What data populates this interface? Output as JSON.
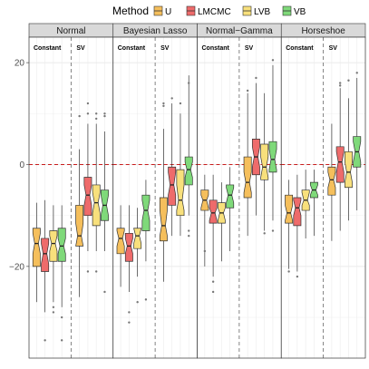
{
  "chart_data": {
    "type": "boxplot",
    "legend": {
      "title": "Method",
      "position": "top",
      "items": [
        {
          "label": "U",
          "color": "#f5bf5c"
        },
        {
          "label": "LMCMC",
          "color": "#ee6b6b"
        },
        {
          "label": "LVB",
          "color": "#f8e07c"
        },
        {
          "label": "VB",
          "color": "#7fd97a"
        }
      ]
    },
    "ylim": [
      -38,
      25
    ],
    "y_ticks": [
      -20,
      0,
      20
    ],
    "reference_line": {
      "y": 0,
      "color": "#c91d1d"
    },
    "groups": [
      "Constant",
      "SV"
    ],
    "grid": true,
    "panels": [
      {
        "title": "Normal",
        "boxes": [
          {
            "group": "Constant",
            "method": "U",
            "whisker_low": -27,
            "q1": -20,
            "median": -15.5,
            "q3": -12.5,
            "whisker_high": -7.5,
            "notch": [
              -17.5,
              -13.5
            ],
            "outliers": []
          },
          {
            "group": "Constant",
            "method": "LMCMC",
            "whisker_low": -29,
            "q1": -21,
            "median": -17.5,
            "q3": -14.5,
            "whisker_high": -7,
            "notch": [
              -19.5,
              -15.5
            ],
            "outliers": [
              -34.5
            ]
          },
          {
            "group": "Constant",
            "method": "LVB",
            "whisker_low": -27,
            "q1": -19,
            "median": -15.5,
            "q3": -13,
            "whisker_high": -8,
            "notch": [
              -17,
              -14
            ],
            "outliers": [
              -28,
              -29
            ]
          },
          {
            "group": "Constant",
            "method": "VB",
            "whisker_low": -28,
            "q1": -19,
            "median": -16,
            "q3": -12.5,
            "whisker_high": -8,
            "notch": [
              -17.5,
              -14.5
            ],
            "outliers": [
              -30,
              -34.5
            ]
          },
          {
            "group": "SV",
            "method": "U",
            "whisker_low": -26,
            "q1": -16,
            "median": -14,
            "q3": -8,
            "whisker_high": 3,
            "notch": [
              -16,
              -11.5
            ],
            "outliers": [
              9.5
            ]
          },
          {
            "group": "SV",
            "method": "LMCMC",
            "whisker_low": -17,
            "q1": -10,
            "median": -6,
            "q3": -2.5,
            "whisker_high": 8,
            "notch": [
              -8,
              -4
            ],
            "outliers": [
              -21,
              12,
              10
            ]
          },
          {
            "group": "SV",
            "method": "LVB",
            "whisker_low": -17,
            "q1": -12,
            "median": -7.5,
            "q3": -4,
            "whisker_high": 8,
            "notch": [
              -9.5,
              -5.5
            ],
            "outliers": [
              -21,
              10,
              9
            ]
          },
          {
            "group": "SV",
            "method": "VB",
            "whisker_low": -17,
            "q1": -11,
            "median": -8,
            "q3": -5,
            "whisker_high": 6.5,
            "notch": [
              -10,
              -6
            ],
            "outliers": [
              -25,
              9.5,
              10
            ]
          }
        ]
      },
      {
        "title": "Bayesian Lasso",
        "boxes": [
          {
            "group": "Constant",
            "method": "U",
            "whisker_low": -24,
            "q1": -17.5,
            "median": -14.5,
            "q3": -12.5,
            "whisker_high": -8,
            "notch": [
              -16,
              -13
            ],
            "outliers": []
          },
          {
            "group": "Constant",
            "method": "LMCMC",
            "whisker_low": -25,
            "q1": -19,
            "median": -16,
            "q3": -13.5,
            "whisker_high": -8,
            "notch": [
              -17.5,
              -14.5
            ],
            "outliers": [
              -29,
              -31
            ]
          },
          {
            "group": "Constant",
            "method": "LVB",
            "whisker_low": -22,
            "q1": -16.5,
            "median": -14,
            "q3": -12.5,
            "whisker_high": -8.5,
            "notch": [
              -15.5,
              -12.5
            ],
            "outliers": [
              -27
            ]
          },
          {
            "group": "Constant",
            "method": "VB",
            "whisker_low": -19,
            "q1": -13,
            "median": -9,
            "q3": -6,
            "whisker_high": -3,
            "notch": [
              -11,
              -7
            ],
            "outliers": [
              -26.5
            ]
          },
          {
            "group": "SV",
            "method": "U",
            "whisker_low": -23,
            "q1": -15,
            "median": -12,
            "q3": -6.5,
            "whisker_high": 7,
            "notch": [
              -14,
              -9
            ],
            "outliers": [
              11.5,
              12
            ]
          },
          {
            "group": "SV",
            "method": "LMCMC",
            "whisker_low": -14,
            "q1": -8,
            "median": -4,
            "q3": -0.5,
            "whisker_high": 12,
            "notch": [
              -6,
              -1.5
            ],
            "outliers": [
              13
            ]
          },
          {
            "group": "SV",
            "method": "LVB",
            "whisker_low": -14,
            "q1": -10,
            "median": -7,
            "q3": -1,
            "whisker_high": 10,
            "notch": [
              -9,
              -4
            ],
            "outliers": [
              12
            ]
          },
          {
            "group": "SV",
            "method": "VB",
            "whisker_low": -10,
            "q1": -4,
            "median": -1,
            "q3": 1.5,
            "whisker_high": 17.5,
            "notch": [
              -2.5,
              0.5
            ],
            "outliers": [
              -13,
              -14,
              16
            ]
          }
        ]
      },
      {
        "title": "Normal−Gamma",
        "boxes": [
          {
            "group": "Constant",
            "method": "U",
            "whisker_low": -20,
            "q1": -9,
            "median": -7,
            "q3": -5,
            "whisker_high": -2,
            "notch": [
              -8.5,
              -6
            ],
            "outliers": [
              -17
            ]
          },
          {
            "group": "Constant",
            "method": "LMCMC",
            "whisker_low": -22,
            "q1": -11.5,
            "median": -9.5,
            "q3": -7,
            "whisker_high": -2,
            "notch": [
              -11,
              -8.5
            ],
            "outliers": [
              -23,
              -25
            ]
          },
          {
            "group": "Constant",
            "method": "LVB",
            "whisker_low": -19,
            "q1": -11.5,
            "median": -9.5,
            "q3": -7.5,
            "whisker_high": -3.5,
            "notch": [
              -11,
              -8.5
            ],
            "outliers": []
          },
          {
            "group": "Constant",
            "method": "VB",
            "whisker_low": -17,
            "q1": -8.5,
            "median": -6,
            "q3": -4,
            "whisker_high": -0.5,
            "notch": [
              -7.5,
              -4.5
            ],
            "outliers": []
          },
          {
            "group": "SV",
            "method": "U",
            "whisker_low": -14,
            "q1": -6.5,
            "median": -3.5,
            "q3": 1.5,
            "whisker_high": 14,
            "notch": [
              -5.5,
              -1.5
            ],
            "outliers": [
              14.5
            ]
          },
          {
            "group": "SV",
            "method": "LMCMC",
            "whisker_low": -10,
            "q1": -2,
            "median": 1.5,
            "q3": 5,
            "whisker_high": 16,
            "notch": [
              -0.5,
              3.5
            ],
            "outliers": [
              17
            ]
          },
          {
            "group": "SV",
            "method": "LVB",
            "whisker_low": -13,
            "q1": -3,
            "median": -0.5,
            "q3": 4,
            "whisker_high": 14,
            "notch": [
              -2.5,
              1.5
            ],
            "outliers": [
              -13.5
            ]
          },
          {
            "group": "SV",
            "method": "VB",
            "whisker_low": -11,
            "q1": -1.5,
            "median": 1,
            "q3": 4.5,
            "whisker_high": 19.5,
            "notch": [
              -1,
              3
            ],
            "outliers": [
              -13,
              20.5
            ]
          }
        ]
      },
      {
        "title": "Horseshoe",
        "boxes": [
          {
            "group": "Constant",
            "method": "U",
            "whisker_low": -20.5,
            "q1": -11.5,
            "median": -9.5,
            "q3": -6,
            "whisker_high": -3,
            "notch": [
              -11,
              -8
            ],
            "outliers": [
              -21
            ]
          },
          {
            "group": "Constant",
            "method": "LMCMC",
            "whisker_low": -21,
            "q1": -12,
            "median": -8.5,
            "q3": -6.5,
            "whisker_high": -2,
            "notch": [
              -10,
              -7
            ],
            "outliers": [
              -22
            ]
          },
          {
            "group": "Constant",
            "method": "LVB",
            "whisker_low": -14.5,
            "q1": -9,
            "median": -7,
            "q3": -5,
            "whisker_high": -1,
            "notch": [
              -8,
              -5.5
            ],
            "outliers": []
          },
          {
            "group": "Constant",
            "method": "VB",
            "whisker_low": -14,
            "q1": -6.5,
            "median": -5,
            "q3": -3.5,
            "whisker_high": -1,
            "notch": [
              -6,
              -4
            ],
            "outliers": []
          },
          {
            "group": "SV",
            "method": "U",
            "whisker_low": -15,
            "q1": -6,
            "median": -3,
            "q3": -0.5,
            "whisker_high": 8,
            "notch": [
              -4.5,
              -1.5
            ],
            "outliers": []
          },
          {
            "group": "SV",
            "method": "LMCMC",
            "whisker_low": -13,
            "q1": -3.5,
            "median": 0.5,
            "q3": 3.5,
            "whisker_high": 15,
            "notch": [
              -1.5,
              2.5
            ],
            "outliers": [
              15.5,
              16
            ]
          },
          {
            "group": "SV",
            "method": "LVB",
            "whisker_low": -11,
            "q1": -4.5,
            "median": -1.5,
            "q3": 2.5,
            "whisker_high": 13,
            "notch": [
              -3.5,
              0.5
            ],
            "outliers": [
              16.5
            ]
          },
          {
            "group": "SV",
            "method": "VB",
            "whisker_low": -9,
            "q1": -0.5,
            "median": 2.5,
            "q3": 5.5,
            "whisker_high": 17,
            "notch": [
              0.5,
              4.5
            ],
            "outliers": [
              18
            ]
          }
        ]
      }
    ]
  }
}
